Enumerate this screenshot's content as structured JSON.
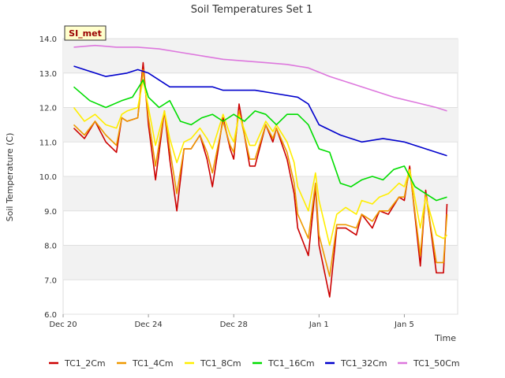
{
  "chart_data": {
    "type": "line",
    "title": "Soil Temperatures Set 1",
    "xlabel": "Time",
    "ylabel": "Soil Temperature (C)",
    "ylim": [
      6.0,
      14.0
    ],
    "xlim": [
      "2023-12-20",
      "2024-01-07T12:00"
    ],
    "y_ticks": [
      "6.0",
      "7.0",
      "8.0",
      "9.0",
      "10.0",
      "11.0",
      "12.0",
      "13.0",
      "14.0"
    ],
    "y_tick_values": [
      6,
      7,
      8,
      9,
      10,
      11,
      12,
      13,
      14
    ],
    "x_ticks": [
      {
        "date": "2023-12-20",
        "label": "Dec 20"
      },
      {
        "date": "2023-12-24",
        "label": "Dec 24"
      },
      {
        "date": "2023-12-28",
        "label": "Dec 28"
      },
      {
        "date": "2024-01-01",
        "label": "Jan 1"
      },
      {
        "date": "2024-01-05",
        "label": "Jan 5"
      }
    ],
    "grid": true,
    "legend_position": "bottom",
    "station_label": "SI_met",
    "series": [
      {
        "name": "TC1_2Cm",
        "color": "#cc0000",
        "x": [
          "2023-12-20T12:00",
          "2023-12-21T00:00",
          "2023-12-21T12:00",
          "2023-12-22T00:00",
          "2023-12-22T12:00",
          "2023-12-22T18:00",
          "2023-12-23T00:00",
          "2023-12-23T12:00",
          "2023-12-23T18:00",
          "2023-12-24T00:00",
          "2023-12-24T08:00",
          "2023-12-24T18:00",
          "2023-12-25T00:00",
          "2023-12-25T08:00",
          "2023-12-25T16:00",
          "2023-12-26T00:00",
          "2023-12-26T10:00",
          "2023-12-26T18:00",
          "2023-12-27T00:00",
          "2023-12-27T12:00",
          "2023-12-27T20:00",
          "2023-12-28T00:00",
          "2023-12-28T06:00",
          "2023-12-28T18:00",
          "2023-12-29T00:00",
          "2023-12-29T12:00",
          "2023-12-29T20:00",
          "2023-12-30T00:00",
          "2023-12-30T12:00",
          "2023-12-30T20:00",
          "2023-12-31T00:00",
          "2023-12-31T12:00",
          "2023-12-31T20:00",
          "2024-01-01T00:00",
          "2024-01-01T12:00",
          "2024-01-01T20:00",
          "2024-01-02T06:00",
          "2024-01-02T18:00",
          "2024-01-03T00:00",
          "2024-01-03T12:00",
          "2024-01-03T20:00",
          "2024-01-04T06:00",
          "2024-01-04T18:00",
          "2024-01-05T00:00",
          "2024-01-05T06:00",
          "2024-01-05T18:00",
          "2024-01-06T00:00",
          "2024-01-06T12:00",
          "2024-01-06T20:00",
          "2024-01-07T00:00"
        ],
        "y": [
          11.4,
          11.1,
          11.6,
          11.0,
          10.7,
          11.7,
          11.6,
          11.7,
          13.3,
          11.5,
          9.9,
          11.9,
          10.5,
          9.0,
          10.8,
          10.8,
          11.2,
          10.5,
          9.7,
          11.7,
          10.8,
          10.5,
          12.1,
          10.3,
          10.3,
          11.5,
          11.0,
          11.4,
          10.5,
          9.5,
          8.5,
          7.7,
          9.7,
          8.0,
          6.5,
          8.5,
          8.5,
          8.3,
          8.9,
          8.5,
          9.0,
          8.9,
          9.4,
          9.3,
          10.3,
          7.4,
          9.6,
          7.2,
          7.2,
          9.2
        ]
      },
      {
        "name": "TC1_4Cm",
        "color": "#ee9900",
        "x": [
          "2023-12-20T12:00",
          "2023-12-21T00:00",
          "2023-12-21T12:00",
          "2023-12-22T00:00",
          "2023-12-22T12:00",
          "2023-12-22T18:00",
          "2023-12-23T00:00",
          "2023-12-23T12:00",
          "2023-12-23T18:00",
          "2023-12-24T00:00",
          "2023-12-24T08:00",
          "2023-12-24T18:00",
          "2023-12-25T00:00",
          "2023-12-25T08:00",
          "2023-12-25T16:00",
          "2023-12-26T00:00",
          "2023-12-26T10:00",
          "2023-12-26T18:00",
          "2023-12-27T00:00",
          "2023-12-27T12:00",
          "2023-12-27T20:00",
          "2023-12-28T00:00",
          "2023-12-28T06:00",
          "2023-12-28T18:00",
          "2023-12-29T00:00",
          "2023-12-29T12:00",
          "2023-12-29T20:00",
          "2023-12-30T00:00",
          "2023-12-30T12:00",
          "2023-12-30T20:00",
          "2023-12-31T00:00",
          "2023-12-31T12:00",
          "2023-12-31T20:00",
          "2024-01-01T00:00",
          "2024-01-01T12:00",
          "2024-01-01T20:00",
          "2024-01-02T06:00",
          "2024-01-02T18:00",
          "2024-01-03T00:00",
          "2024-01-03T12:00",
          "2024-01-03T20:00",
          "2024-01-04T06:00",
          "2024-01-04T18:00",
          "2024-01-05T00:00",
          "2024-01-05T06:00",
          "2024-01-05T18:00",
          "2024-01-06T00:00",
          "2024-01-06T12:00",
          "2024-01-06T20:00",
          "2024-01-07T00:00"
        ],
        "y": [
          11.5,
          11.2,
          11.6,
          11.2,
          10.9,
          11.7,
          11.6,
          11.7,
          13.1,
          11.7,
          10.3,
          11.9,
          10.8,
          9.5,
          10.8,
          10.8,
          11.2,
          10.7,
          10.1,
          11.6,
          10.9,
          10.7,
          11.9,
          10.5,
          10.5,
          11.5,
          11.1,
          11.4,
          10.7,
          9.8,
          8.9,
          8.2,
          9.8,
          8.3,
          7.1,
          8.6,
          8.6,
          8.5,
          8.9,
          8.7,
          9.0,
          9.0,
          9.4,
          9.4,
          10.2,
          7.7,
          9.5,
          7.5,
          7.5,
          8.9
        ]
      },
      {
        "name": "TC1_8Cm",
        "color": "#ffee00",
        "x": [
          "2023-12-20T12:00",
          "2023-12-21T00:00",
          "2023-12-21T12:00",
          "2023-12-22T00:00",
          "2023-12-22T12:00",
          "2023-12-22T18:00",
          "2023-12-23T00:00",
          "2023-12-23T12:00",
          "2023-12-23T18:00",
          "2023-12-24T00:00",
          "2023-12-24T08:00",
          "2023-12-24T18:00",
          "2023-12-25T00:00",
          "2023-12-25T08:00",
          "2023-12-25T16:00",
          "2023-12-26T00:00",
          "2023-12-26T10:00",
          "2023-12-26T18:00",
          "2023-12-27T00:00",
          "2023-12-27T12:00",
          "2023-12-27T20:00",
          "2023-12-28T00:00",
          "2023-12-28T06:00",
          "2023-12-28T18:00",
          "2023-12-29T00:00",
          "2023-12-29T12:00",
          "2023-12-29T20:00",
          "2023-12-30T00:00",
          "2023-12-30T12:00",
          "2023-12-30T20:00",
          "2023-12-31T00:00",
          "2023-12-31T12:00",
          "2023-12-31T20:00",
          "2024-01-01T00:00",
          "2024-01-01T12:00",
          "2024-01-01T20:00",
          "2024-01-02T06:00",
          "2024-01-02T18:00",
          "2024-01-03T00:00",
          "2024-01-03T12:00",
          "2024-01-03T20:00",
          "2024-01-04T06:00",
          "2024-01-04T18:00",
          "2024-01-05T00:00",
          "2024-01-05T06:00",
          "2024-01-05T18:00",
          "2024-01-06T00:00",
          "2024-01-06T12:00",
          "2024-01-06T20:00",
          "2024-01-07T00:00"
        ],
        "y": [
          12.0,
          11.6,
          11.8,
          11.5,
          11.4,
          11.8,
          11.9,
          12.0,
          12.8,
          12.0,
          10.9,
          11.9,
          11.1,
          10.4,
          11.0,
          11.1,
          11.4,
          11.1,
          10.8,
          11.8,
          11.2,
          11.0,
          11.8,
          10.9,
          10.9,
          11.6,
          11.3,
          11.5,
          11.0,
          10.4,
          9.7,
          9.0,
          10.1,
          9.3,
          8.0,
          8.9,
          9.1,
          8.9,
          9.3,
          9.2,
          9.4,
          9.5,
          9.8,
          9.7,
          10.2,
          8.5,
          9.4,
          8.3,
          8.2,
          8.3
        ]
      },
      {
        "name": "TC1_16Cm",
        "color": "#00dd00",
        "x": [
          "2023-12-20T12:00",
          "2023-12-21T06:00",
          "2023-12-22T00:00",
          "2023-12-22T18:00",
          "2023-12-23T06:00",
          "2023-12-23T18:00",
          "2023-12-24T00:00",
          "2023-12-24T12:00",
          "2023-12-25T00:00",
          "2023-12-25T12:00",
          "2023-12-26T00:00",
          "2023-12-26T12:00",
          "2023-12-27T00:00",
          "2023-12-27T12:00",
          "2023-12-28T00:00",
          "2023-12-28T12:00",
          "2023-12-29T00:00",
          "2023-12-29T12:00",
          "2023-12-30T00:00",
          "2023-12-30T12:00",
          "2023-12-31T00:00",
          "2023-12-31T12:00",
          "2024-01-01T00:00",
          "2024-01-01T12:00",
          "2024-01-02T00:00",
          "2024-01-02T12:00",
          "2024-01-03T00:00",
          "2024-01-03T12:00",
          "2024-01-04T00:00",
          "2024-01-04T12:00",
          "2024-01-05T00:00",
          "2024-01-05T12:00",
          "2024-01-06T00:00",
          "2024-01-06T12:00",
          "2024-01-07T00:00"
        ],
        "y": [
          12.6,
          12.2,
          12.0,
          12.2,
          12.3,
          12.8,
          12.3,
          12.0,
          12.2,
          11.6,
          11.5,
          11.7,
          11.8,
          11.6,
          11.8,
          11.6,
          11.9,
          11.8,
          11.5,
          11.8,
          11.8,
          11.5,
          10.8,
          10.7,
          9.8,
          9.7,
          9.9,
          10.0,
          9.9,
          10.2,
          10.3,
          9.7,
          9.5,
          9.3,
          9.4
        ]
      },
      {
        "name": "TC1_32Cm",
        "color": "#0000cc",
        "x": [
          "2023-12-20T12:00",
          "2023-12-21T00:00",
          "2023-12-22T00:00",
          "2023-12-23T00:00",
          "2023-12-23T12:00",
          "2023-12-24T00:00",
          "2023-12-25T00:00",
          "2023-12-26T00:00",
          "2023-12-27T00:00",
          "2023-12-27T12:00",
          "2023-12-28T00:00",
          "2023-12-29T00:00",
          "2023-12-30T00:00",
          "2023-12-31T00:00",
          "2023-12-31T12:00",
          "2024-01-01T00:00",
          "2024-01-02T00:00",
          "2024-01-03T00:00",
          "2024-01-04T00:00",
          "2024-01-05T00:00",
          "2024-01-06T00:00",
          "2024-01-06T12:00",
          "2024-01-07T00:00"
        ],
        "y": [
          13.2,
          13.1,
          12.9,
          13.0,
          13.1,
          13.0,
          12.6,
          12.6,
          12.6,
          12.5,
          12.5,
          12.5,
          12.4,
          12.3,
          12.1,
          11.5,
          11.2,
          11.0,
          11.1,
          11.0,
          10.8,
          10.7,
          10.6
        ]
      },
      {
        "name": "TC1_50Cm",
        "color": "#dd77dd",
        "x": [
          "2023-12-20T12:00",
          "2023-12-21T12:00",
          "2023-12-22T12:00",
          "2023-12-23T12:00",
          "2023-12-24T12:00",
          "2023-12-25T12:00",
          "2023-12-26T12:00",
          "2023-12-27T12:00",
          "2023-12-28T12:00",
          "2023-12-29T12:00",
          "2023-12-30T12:00",
          "2023-12-31T12:00",
          "2024-01-01T12:00",
          "2024-01-02T12:00",
          "2024-01-03T12:00",
          "2024-01-04T12:00",
          "2024-01-05T12:00",
          "2024-01-06T12:00",
          "2024-01-07T00:00"
        ],
        "y": [
          13.75,
          13.8,
          13.75,
          13.75,
          13.7,
          13.6,
          13.5,
          13.4,
          13.35,
          13.3,
          13.25,
          13.15,
          12.9,
          12.7,
          12.5,
          12.3,
          12.15,
          12.0,
          11.9
        ]
      }
    ]
  }
}
